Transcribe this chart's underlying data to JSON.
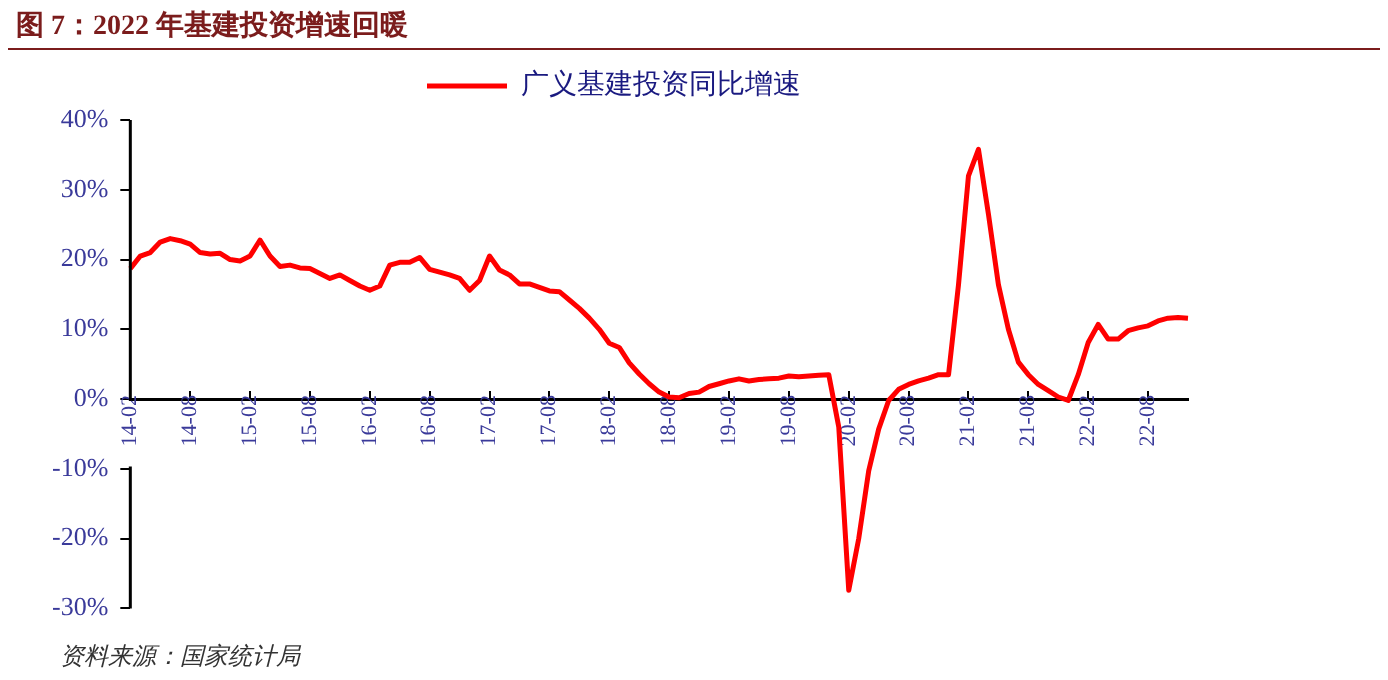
{
  "chart_data": {
    "type": "line",
    "title": "图 7：2022 年基建投资增速回暖",
    "annotations": [
      "资料来源：国家统计局"
    ],
    "categories": [
      "14-02",
      null,
      null,
      null,
      null,
      null,
      "14-08",
      null,
      null,
      null,
      null,
      null,
      "15-02",
      null,
      null,
      null,
      null,
      null,
      "15-08",
      null,
      null,
      null,
      null,
      null,
      "16-02",
      null,
      null,
      null,
      null,
      null,
      "16-08",
      null,
      null,
      null,
      null,
      null,
      "17-02",
      null,
      null,
      null,
      null,
      null,
      "17-08",
      null,
      null,
      null,
      null,
      null,
      "18-02",
      null,
      null,
      null,
      null,
      null,
      "18-08",
      null,
      null,
      null,
      null,
      null,
      "19-02",
      null,
      null,
      null,
      null,
      null,
      "19-08",
      null,
      null,
      null,
      null,
      null,
      "20-02",
      null,
      null,
      null,
      null,
      null,
      "20-08",
      null,
      null,
      null,
      null,
      null,
      "21-02",
      null,
      null,
      null,
      null,
      null,
      "21-08",
      null,
      null,
      null,
      null,
      null,
      "22-02",
      null,
      null,
      null,
      null,
      null,
      "22-08",
      null,
      null,
      null,
      null
    ],
    "series": [
      {
        "name": "广义基建投资同比增速",
        "color": "#ff0000",
        "values": [
          18.7,
          20.5,
          21,
          22.5,
          23,
          22.7,
          22.2,
          21,
          20.8,
          20.9,
          20,
          19.8,
          20.5,
          22.8,
          20.5,
          19,
          19.2,
          18.8,
          18.7,
          18,
          17.3,
          17.8,
          17,
          16.2,
          15.6,
          16.2,
          19.2,
          19.6,
          19.6,
          20.3,
          18.6,
          18.2,
          17.8,
          17.3,
          15.6,
          17,
          20.5,
          18.5,
          17.8,
          16.5,
          16.5,
          16,
          15.5,
          15.4,
          14.2,
          13,
          11.6,
          10,
          8,
          7.4,
          5.2,
          3.6,
          2.2,
          1,
          0.3,
          0.2,
          0.8,
          1,
          1.8,
          2.2,
          2.6,
          2.9,
          2.6,
          2.8,
          2.9,
          3,
          3.3,
          3.2,
          3.3,
          3.4,
          3.5,
          -4,
          -27.4,
          -20,
          -10.3,
          -4.3,
          -0.2,
          1.4,
          2.1,
          2.6,
          3,
          3.5,
          3.5,
          16.4,
          32,
          35.8,
          26.5,
          16.4,
          10,
          5.3,
          3.5,
          2.1,
          1.2,
          0.3,
          -0.2,
          3.5,
          8.1,
          10.7,
          8.6,
          8.6,
          9.8,
          10.2,
          10.5,
          11.2,
          11.6,
          11.7,
          11.6
        ]
      }
    ],
    "ylim": [
      -30,
      40
    ],
    "yticks": [
      {
        "value": -30,
        "label": "-30%"
      },
      {
        "value": -20,
        "label": "-20%"
      },
      {
        "value": -10,
        "label": "-10%"
      },
      {
        "value": 0,
        "label": "0%"
      },
      {
        "value": 10,
        "label": "10%"
      },
      {
        "value": 20,
        "label": "20%"
      },
      {
        "value": 30,
        "label": "30%"
      },
      {
        "value": 40,
        "label": "40%"
      }
    ],
    "legend": "top",
    "marker": "none"
  }
}
